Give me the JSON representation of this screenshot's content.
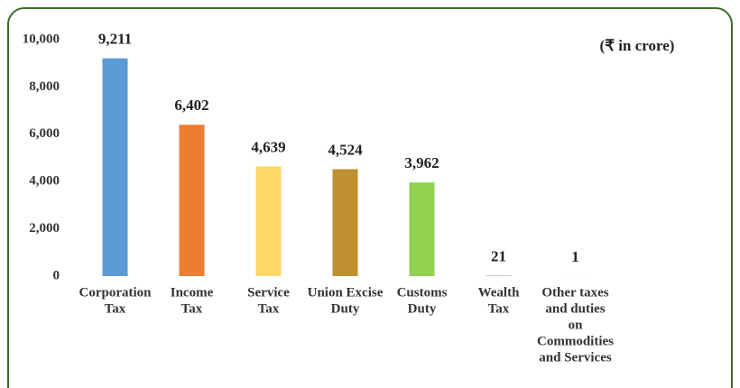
{
  "chart_data": {
    "type": "bar",
    "annotation": "(₹ in crore)",
    "categories": [
      [
        "Corporation",
        "Tax"
      ],
      [
        "Income",
        "Tax"
      ],
      [
        "Service",
        "Tax"
      ],
      [
        "Union Excise",
        "Duty"
      ],
      [
        "Customs",
        "Duty"
      ],
      [
        "Wealth",
        "Tax"
      ],
      [
        "Other taxes",
        "and duties",
        "on",
        "Commodities",
        "and Services"
      ]
    ],
    "values": [
      9211,
      6402,
      4639,
      4524,
      3962,
      21,
      1
    ],
    "value_labels": [
      "9,211",
      "6,402",
      "4,639",
      "4,524",
      "3,962",
      "21",
      "1"
    ],
    "colors": [
      "#5b9bd5",
      "#ed7d31",
      "#ffd966",
      "#bf9030",
      "#92d050",
      "#a5a5a5",
      "#4472c4"
    ],
    "ylim": [
      0,
      10000
    ],
    "yticks": [
      0,
      {
        "value": 2000,
        "label": "2,000"
      },
      {
        "value": 4000,
        "label": "4,000"
      },
      {
        "value": 6000,
        "label": "6,000"
      },
      {
        "value": 8000,
        "label": "8,000"
      },
      {
        "value": 10000,
        "label": "10,000"
      }
    ]
  }
}
